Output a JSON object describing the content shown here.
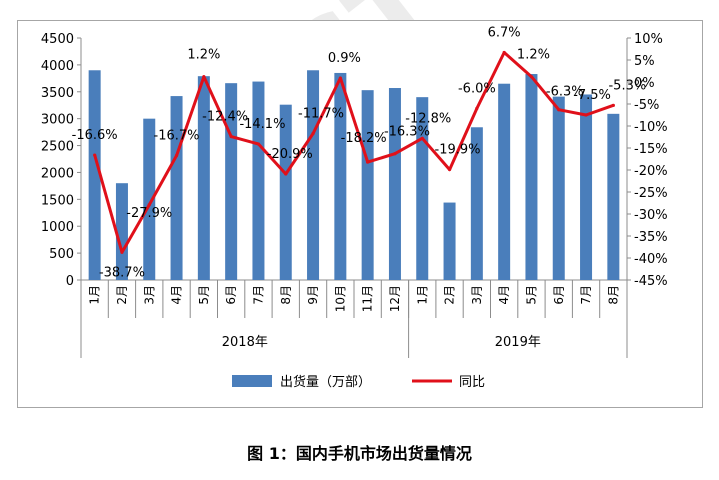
{
  "caption": "图 1：国内手机市场出货量情况",
  "watermark": "CAICT中国信通院",
  "chart_data": {
    "type": "bar+line",
    "categories": [
      "1月",
      "2月",
      "3月",
      "4月",
      "5月",
      "6月",
      "7月",
      "8月",
      "9月",
      "10月",
      "11月",
      "12月",
      "1月",
      "2月",
      "3月",
      "4月",
      "5月",
      "6月",
      "7月",
      "8月"
    ],
    "groups": [
      {
        "label": "2018年",
        "count": 12
      },
      {
        "label": "2019年",
        "count": 8
      }
    ],
    "series": [
      {
        "name": "出货量（万部）",
        "type": "bar",
        "axis": "left",
        "color": "#4a7ebb",
        "values": [
          3900,
          1800,
          3000,
          3420,
          3790,
          3660,
          3690,
          3260,
          3900,
          3850,
          3530,
          3570,
          3400,
          1440,
          2840,
          3650,
          3830,
          3410,
          3450,
          3090
        ]
      },
      {
        "name": "同比",
        "type": "line",
        "axis": "right",
        "color": "#e0101a",
        "values": [
          -16.6,
          -38.7,
          -27.9,
          -16.7,
          1.2,
          -12.4,
          -14.1,
          -20.9,
          -11.7,
          0.9,
          -18.2,
          -16.3,
          -12.8,
          -19.9,
          -6.0,
          6.7,
          1.2,
          -6.3,
          -7.5,
          -5.3
        ],
        "labels": [
          "-16.6%",
          "-38.7%",
          "-27.9%",
          "-16.7%",
          "1.2%",
          "-12.4%",
          "-14.1%",
          "-20.9%",
          "-11.7%",
          "0.9%",
          "-18.2%",
          "-16.3%",
          "-12.8%",
          "-19.9%",
          "-6.0%",
          "6.7%",
          "1.2%",
          "-6.3%",
          "-7.5%",
          "-5.3%"
        ]
      }
    ],
    "left_axis": {
      "min": 0,
      "max": 4500,
      "ticks": [
        "0",
        "500",
        "1000",
        "1500",
        "2000",
        "2500",
        "3000",
        "3500",
        "4000",
        "4500"
      ]
    },
    "right_axis": {
      "min": -45,
      "max": 10,
      "ticks": [
        "-45%",
        "-40%",
        "-35%",
        "-30%",
        "-25%",
        "-20%",
        "-15%",
        "-10%",
        "-5%",
        "0%",
        "5%",
        "10%"
      ]
    },
    "legend": [
      "出货量（万部）",
      "同比"
    ],
    "legend_position": "bottom"
  }
}
